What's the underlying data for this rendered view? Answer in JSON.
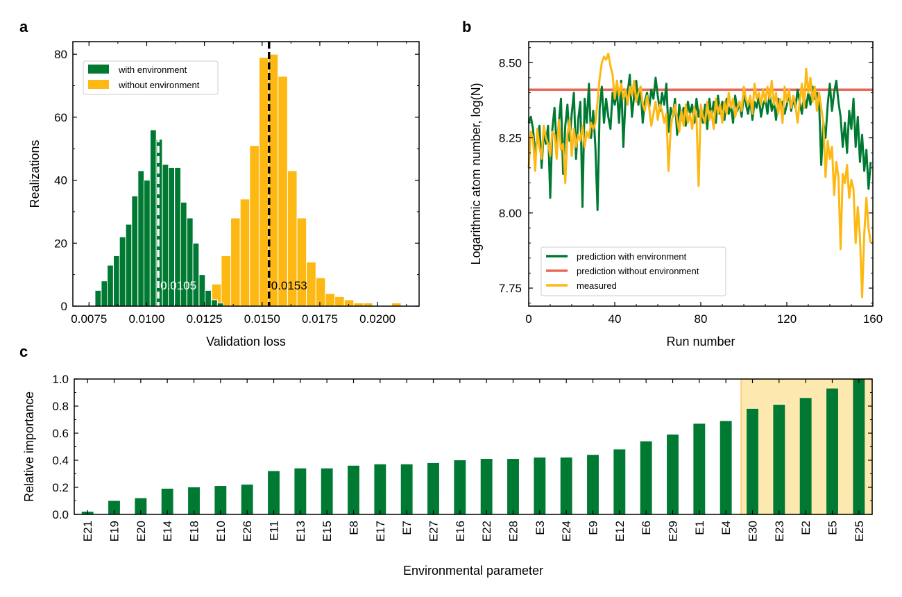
{
  "chart_data": [
    {
      "panel": "a",
      "type": "bar",
      "subtype": "histogram",
      "xlabel": "Validation loss",
      "ylabel": "Realizations",
      "xlim": [
        0.0068,
        0.0218
      ],
      "ylim": [
        0,
        84
      ],
      "xticks": [
        0.0075,
        0.01,
        0.0125,
        0.015,
        0.0175,
        0.02
      ],
      "xtick_labels": [
        "0.0075",
        "0.0100",
        "0.0125",
        "0.0150",
        "0.0175",
        "0.0200"
      ],
      "yticks": [
        0,
        20,
        40,
        60,
        80
      ],
      "ytick_labels": [
        "0",
        "20",
        "40",
        "60",
        "80"
      ],
      "legend_position": "upper-left",
      "series": [
        {
          "name": "with environment",
          "color": "#007A33",
          "bin_width": 0.000265,
          "bins": [
            {
              "x": 0.00776,
              "y": 5
            },
            {
              "x": 0.00803,
              "y": 8
            },
            {
              "x": 0.00829,
              "y": 13
            },
            {
              "x": 0.00856,
              "y": 16
            },
            {
              "x": 0.00882,
              "y": 22
            },
            {
              "x": 0.00909,
              "y": 26
            },
            {
              "x": 0.00935,
              "y": 35
            },
            {
              "x": 0.00962,
              "y": 43
            },
            {
              "x": 0.00988,
              "y": 40
            },
            {
              "x": 0.01015,
              "y": 56
            },
            {
              "x": 0.01041,
              "y": 53
            },
            {
              "x": 0.01068,
              "y": 45
            },
            {
              "x": 0.01094,
              "y": 44
            },
            {
              "x": 0.01121,
              "y": 44
            },
            {
              "x": 0.01147,
              "y": 33
            },
            {
              "x": 0.01174,
              "y": 28
            },
            {
              "x": 0.012,
              "y": 20
            },
            {
              "x": 0.01227,
              "y": 10
            },
            {
              "x": 0.01253,
              "y": 5
            },
            {
              "x": 0.0128,
              "y": 2
            },
            {
              "x": 0.01306,
              "y": 1
            }
          ],
          "mean": 0.0105,
          "mean_label": "0.0105"
        },
        {
          "name": "without environment",
          "color": "#FDB813",
          "bin_width": 0.00041,
          "bins": [
            {
              "x": 0.012,
              "y": 2
            },
            {
              "x": 0.01241,
              "y": 5
            },
            {
              "x": 0.01282,
              "y": 7
            },
            {
              "x": 0.01323,
              "y": 16
            },
            {
              "x": 0.01364,
              "y": 28
            },
            {
              "x": 0.01405,
              "y": 34
            },
            {
              "x": 0.01446,
              "y": 51
            },
            {
              "x": 0.01487,
              "y": 79
            },
            {
              "x": 0.01528,
              "y": 80
            },
            {
              "x": 0.01569,
              "y": 73
            },
            {
              "x": 0.0161,
              "y": 43
            },
            {
              "x": 0.01651,
              "y": 28
            },
            {
              "x": 0.01692,
              "y": 14
            },
            {
              "x": 0.01733,
              "y": 9
            },
            {
              "x": 0.01774,
              "y": 4
            },
            {
              "x": 0.01815,
              "y": 3
            },
            {
              "x": 0.01856,
              "y": 2
            },
            {
              "x": 0.01897,
              "y": 1
            },
            {
              "x": 0.01938,
              "y": 1
            },
            {
              "x": 0.02061,
              "y": 1
            }
          ],
          "mean": 0.0153,
          "mean_label": "0.0153"
        }
      ]
    },
    {
      "panel": "b",
      "type": "line",
      "xlabel": "Run number",
      "ylabel": "Logarithmic atom number, log(N)",
      "xlim": [
        0,
        160
      ],
      "ylim": [
        7.69,
        8.57
      ],
      "xticks": [
        0,
        40,
        80,
        120,
        160
      ],
      "xtick_labels": [
        "0",
        "40",
        "80",
        "120",
        "160"
      ],
      "yticks": [
        7.75,
        8.0,
        8.25,
        8.5
      ],
      "ytick_labels": [
        "7.75",
        "8.00",
        "8.25",
        "8.50"
      ],
      "legend_position": "lower-left",
      "series": [
        {
          "name": "prediction with environment",
          "color": "#007A33",
          "x": [
            0,
            1,
            2,
            3,
            4,
            5,
            6,
            7,
            8,
            9,
            10,
            11,
            12,
            13,
            14,
            15,
            16,
            17,
            18,
            19,
            20,
            21,
            22,
            23,
            24,
            25,
            26,
            27,
            28,
            29,
            30,
            31,
            32,
            33,
            34,
            35,
            36,
            37,
            38,
            39,
            40,
            41,
            42,
            43,
            44,
            45,
            46,
            47,
            48,
            49,
            50,
            51,
            52,
            53,
            54,
            55,
            56,
            57,
            58,
            59,
            60,
            61,
            62,
            63,
            64,
            65,
            66,
            67,
            68,
            69,
            70,
            71,
            72,
            73,
            74,
            75,
            76,
            77,
            78,
            79,
            80,
            81,
            82,
            83,
            84,
            85,
            86,
            87,
            88,
            89,
            90,
            91,
            92,
            93,
            94,
            95,
            96,
            97,
            98,
            99,
            100,
            101,
            102,
            103,
            104,
            105,
            106,
            107,
            108,
            109,
            110,
            111,
            112,
            113,
            114,
            115,
            116,
            117,
            118,
            119,
            120,
            121,
            122,
            123,
            124,
            125,
            126,
            127,
            128,
            129,
            130,
            131,
            132,
            133,
            134,
            135,
            136,
            137,
            138,
            139,
            140,
            141,
            142,
            143,
            144,
            145,
            146,
            147,
            148,
            149,
            150,
            151,
            152,
            153,
            154,
            155,
            156,
            157,
            158,
            159
          ],
          "y": [
            8.3,
            8.32,
            8.28,
            8.2,
            8.25,
            8.29,
            8.15,
            8.27,
            8.23,
            8.29,
            8.05,
            8.28,
            8.35,
            8.22,
            8.3,
            8.38,
            8.13,
            8.29,
            8.36,
            8.24,
            8.33,
            8.4,
            8.18,
            8.31,
            8.37,
            8.02,
            8.38,
            8.3,
            8.43,
            8.25,
            8.34,
            8.22,
            8.01,
            8.35,
            8.42,
            8.3,
            8.38,
            8.32,
            8.28,
            8.4,
            8.36,
            8.41,
            8.3,
            8.44,
            8.22,
            8.38,
            8.4,
            8.46,
            8.32,
            8.39,
            8.44,
            8.36,
            8.42,
            8.3,
            8.37,
            8.4,
            8.35,
            8.41,
            8.38,
            8.45,
            8.39,
            8.34,
            8.4,
            8.36,
            8.43,
            8.27,
            8.35,
            8.32,
            8.38,
            8.26,
            8.36,
            8.31,
            8.35,
            8.29,
            8.37,
            8.33,
            8.36,
            8.3,
            8.38,
            8.32,
            8.35,
            8.3,
            8.36,
            8.28,
            8.38,
            8.32,
            8.37,
            8.3,
            8.39,
            8.33,
            8.37,
            8.31,
            8.38,
            8.33,
            8.36,
            8.3,
            8.39,
            8.34,
            8.37,
            8.32,
            8.4,
            8.36,
            8.33,
            8.38,
            8.31,
            8.37,
            8.35,
            8.39,
            8.32,
            8.36,
            8.38,
            8.33,
            8.4,
            8.34,
            8.37,
            8.31,
            8.38,
            8.35,
            8.37,
            8.33,
            8.36,
            8.4,
            8.34,
            8.38,
            8.35,
            8.41,
            8.37,
            8.33,
            8.39,
            8.35,
            8.4,
            8.36,
            8.42,
            8.38,
            8.4,
            8.37,
            8.16,
            8.3,
            8.25,
            8.36,
            8.43,
            8.34,
            8.4,
            8.44,
            8.37,
            8.32,
            8.22,
            8.3,
            8.2,
            8.34,
            8.28,
            8.38,
            8.22,
            8.32,
            8.17,
            8.26,
            8.14,
            8.21,
            8.08,
            8.17
          ],
          "linewidth": 3
        },
        {
          "name": "prediction without environment",
          "color": "#E8685A",
          "x": [
            0,
            160
          ],
          "y": [
            8.41,
            8.41
          ]
        },
        {
          "name": "measured",
          "color": "#FDB813",
          "x": [
            0,
            1,
            2,
            3,
            4,
            5,
            6,
            7,
            8,
            9,
            10,
            11,
            12,
            13,
            14,
            15,
            16,
            17,
            18,
            19,
            20,
            21,
            22,
            23,
            24,
            25,
            26,
            27,
            28,
            29,
            30,
            31,
            32,
            33,
            34,
            35,
            36,
            37,
            38,
            39,
            40,
            41,
            42,
            43,
            44,
            45,
            46,
            47,
            48,
            49,
            50,
            51,
            52,
            53,
            54,
            55,
            56,
            57,
            58,
            59,
            60,
            61,
            62,
            63,
            64,
            65,
            66,
            67,
            68,
            69,
            70,
            71,
            72,
            73,
            74,
            75,
            76,
            77,
            78,
            79,
            80,
            81,
            82,
            83,
            84,
            85,
            86,
            87,
            88,
            89,
            90,
            91,
            92,
            93,
            94,
            95,
            96,
            97,
            98,
            99,
            100,
            101,
            102,
            103,
            104,
            105,
            106,
            107,
            108,
            109,
            110,
            111,
            112,
            113,
            114,
            115,
            116,
            117,
            118,
            119,
            120,
            121,
            122,
            123,
            124,
            125,
            126,
            127,
            128,
            129,
            130,
            131,
            132,
            133,
            134,
            135,
            136,
            137,
            138,
            139,
            140,
            141,
            142,
            143,
            144,
            145,
            146,
            147,
            148,
            149,
            150,
            151,
            152,
            153,
            154,
            155,
            156,
            157,
            158,
            159
          ],
          "y": [
            8.15,
            8.27,
            8.25,
            8.14,
            8.28,
            8.22,
            8.18,
            8.29,
            8.25,
            8.23,
            8.19,
            8.27,
            8.26,
            8.18,
            8.31,
            8.21,
            8.23,
            8.1,
            8.26,
            8.31,
            8.19,
            8.28,
            8.22,
            8.26,
            8.24,
            8.29,
            8.22,
            8.27,
            8.25,
            8.3,
            8.28,
            8.3,
            8.37,
            8.45,
            8.5,
            8.52,
            8.51,
            8.53,
            8.49,
            8.46,
            8.38,
            8.44,
            8.39,
            8.43,
            8.38,
            8.41,
            8.36,
            8.42,
            8.39,
            8.44,
            8.37,
            8.4,
            8.42,
            8.36,
            8.34,
            8.39,
            8.35,
            8.29,
            8.33,
            8.37,
            8.31,
            8.36,
            8.34,
            8.3,
            8.33,
            8.14,
            8.28,
            8.33,
            8.36,
            8.31,
            8.27,
            8.34,
            8.29,
            8.36,
            8.3,
            8.33,
            8.28,
            8.35,
            8.32,
            8.09,
            8.36,
            8.32,
            8.3,
            8.37,
            8.31,
            8.34,
            8.28,
            8.38,
            8.33,
            8.36,
            8.3,
            8.37,
            8.33,
            8.4,
            8.35,
            8.38,
            8.32,
            8.35,
            8.37,
            8.34,
            8.42,
            8.38,
            8.36,
            8.39,
            8.33,
            8.43,
            8.38,
            8.4,
            8.36,
            8.41,
            8.37,
            8.42,
            8.38,
            8.44,
            8.36,
            8.4,
            8.33,
            8.38,
            8.3,
            8.42,
            8.37,
            8.41,
            8.35,
            8.39,
            8.36,
            8.3,
            8.37,
            8.43,
            8.35,
            8.48,
            8.4,
            8.45,
            8.37,
            8.42,
            8.34,
            8.4,
            8.35,
            8.3,
            8.12,
            8.24,
            8.18,
            8.22,
            8.06,
            8.17,
            8.12,
            7.88,
            8.13,
            8.1,
            8.16,
            8.05,
            8.11,
            8.08,
            7.9,
            8.02,
            7.92,
            7.72,
            7.93,
            8.05,
            7.95,
            7.9
          ],
          "linewidth": 3
        }
      ]
    },
    {
      "panel": "c",
      "type": "bar",
      "xlabel": "Environmental parameter",
      "ylabel": "Relative importance",
      "ylim": [
        0,
        1.0
      ],
      "yticks": [
        0.0,
        0.2,
        0.4,
        0.6,
        0.8,
        1.0
      ],
      "ytick_labels": [
        "0.0",
        "0.2",
        "0.4",
        "0.6",
        "0.8",
        "1.0"
      ],
      "bar_color": "#007A33",
      "highlight_color": "#FDE8B0",
      "highlight_categories": [
        "E30",
        "E23",
        "E2",
        "E5",
        "E25"
      ],
      "categories": [
        "E21",
        "E19",
        "E20",
        "E14",
        "E18",
        "E10",
        "E26",
        "E11",
        "E13",
        "E15",
        "E8",
        "E17",
        "E7",
        "E27",
        "E16",
        "E22",
        "E28",
        "E3",
        "E24",
        "E9",
        "E12",
        "E6",
        "E29",
        "E1",
        "E4",
        "E30",
        "E23",
        "E2",
        "E5",
        "E25"
      ],
      "values": [
        0.02,
        0.1,
        0.12,
        0.19,
        0.2,
        0.21,
        0.22,
        0.32,
        0.34,
        0.34,
        0.36,
        0.37,
        0.37,
        0.38,
        0.4,
        0.41,
        0.41,
        0.42,
        0.42,
        0.44,
        0.48,
        0.54,
        0.59,
        0.67,
        0.69,
        0.78,
        0.81,
        0.86,
        0.93,
        1.0
      ]
    }
  ],
  "panel_letters": {
    "a": "a",
    "b": "b",
    "c": "c"
  }
}
